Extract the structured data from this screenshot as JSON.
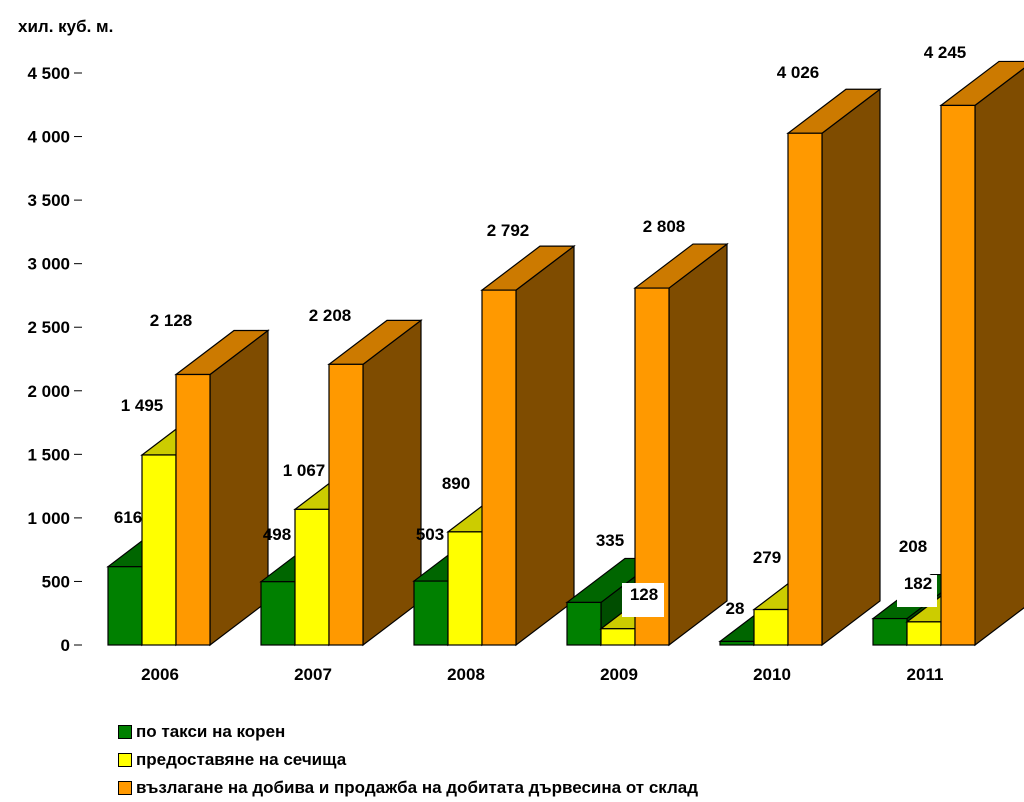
{
  "chart_data": {
    "type": "bar",
    "ylabel": "хил. куб. м.",
    "ylim": [
      0,
      4500
    ],
    "yticks": [
      0,
      500,
      1000,
      1500,
      2000,
      2500,
      3000,
      3500,
      4000,
      4500
    ],
    "ytick_labels": [
      "0",
      "500",
      "1 000",
      "1 500",
      "2 000",
      "2 500",
      "3 000",
      "3 500",
      "4 000",
      "4 500"
    ],
    "categories": [
      "2006",
      "2007",
      "2008",
      "2009",
      "2010",
      "2011"
    ],
    "series": [
      {
        "name": "по такси на корен",
        "color": "#008000",
        "values": [
          616,
          498,
          503,
          335,
          28,
          208
        ],
        "labels": [
          "616",
          "498",
          "503",
          "335",
          "28",
          "208"
        ]
      },
      {
        "name": "предоставяне на сечища",
        "color": "#ffff00",
        "values": [
          1495,
          1067,
          890,
          128,
          279,
          182
        ],
        "labels": [
          "1 495",
          "1 067",
          "890",
          "128",
          "279",
          "182"
        ]
      },
      {
        "name": "възлагане на добива и продажба на добитата дървесина от склад",
        "color": "#ff9900",
        "values": [
          2128,
          2208,
          2792,
          2808,
          4026,
          4245
        ],
        "labels": [
          "2 128",
          "2 208",
          "2 792",
          "2 808",
          "4 026",
          "4 245"
        ]
      }
    ],
    "legend_position": "bottom",
    "grid": false
  }
}
